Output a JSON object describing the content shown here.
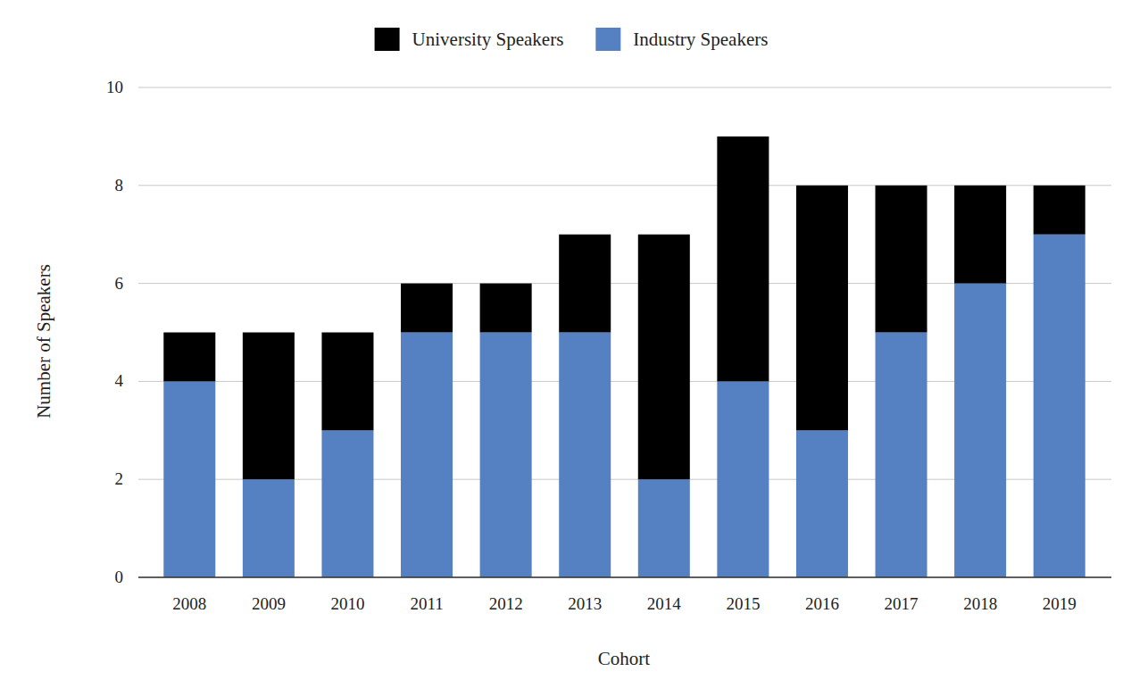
{
  "chart_data": {
    "type": "bar",
    "stacked": true,
    "grid": true,
    "legend": "top",
    "x_label": "Cohort",
    "y_label": "Number of Speakers",
    "categories": [
      "2008",
      "2009",
      "2010",
      "2011",
      "2012",
      "2013",
      "2014",
      "2015",
      "2016",
      "2017",
      "2018",
      "2019"
    ],
    "series": [
      {
        "name": "University Speakers",
        "color": "#000000",
        "values": [
          1,
          3,
          2,
          1,
          1,
          2,
          5,
          5,
          5,
          3,
          2,
          1
        ]
      },
      {
        "name": "Industry Speakers",
        "color": "#5580c2",
        "values": [
          4,
          2,
          3,
          5,
          5,
          5,
          2,
          4,
          3,
          5,
          6,
          7
        ]
      }
    ],
    "ylim": [
      0,
      10
    ],
    "yticks": [
      0,
      2,
      4,
      6,
      8,
      10
    ]
  }
}
